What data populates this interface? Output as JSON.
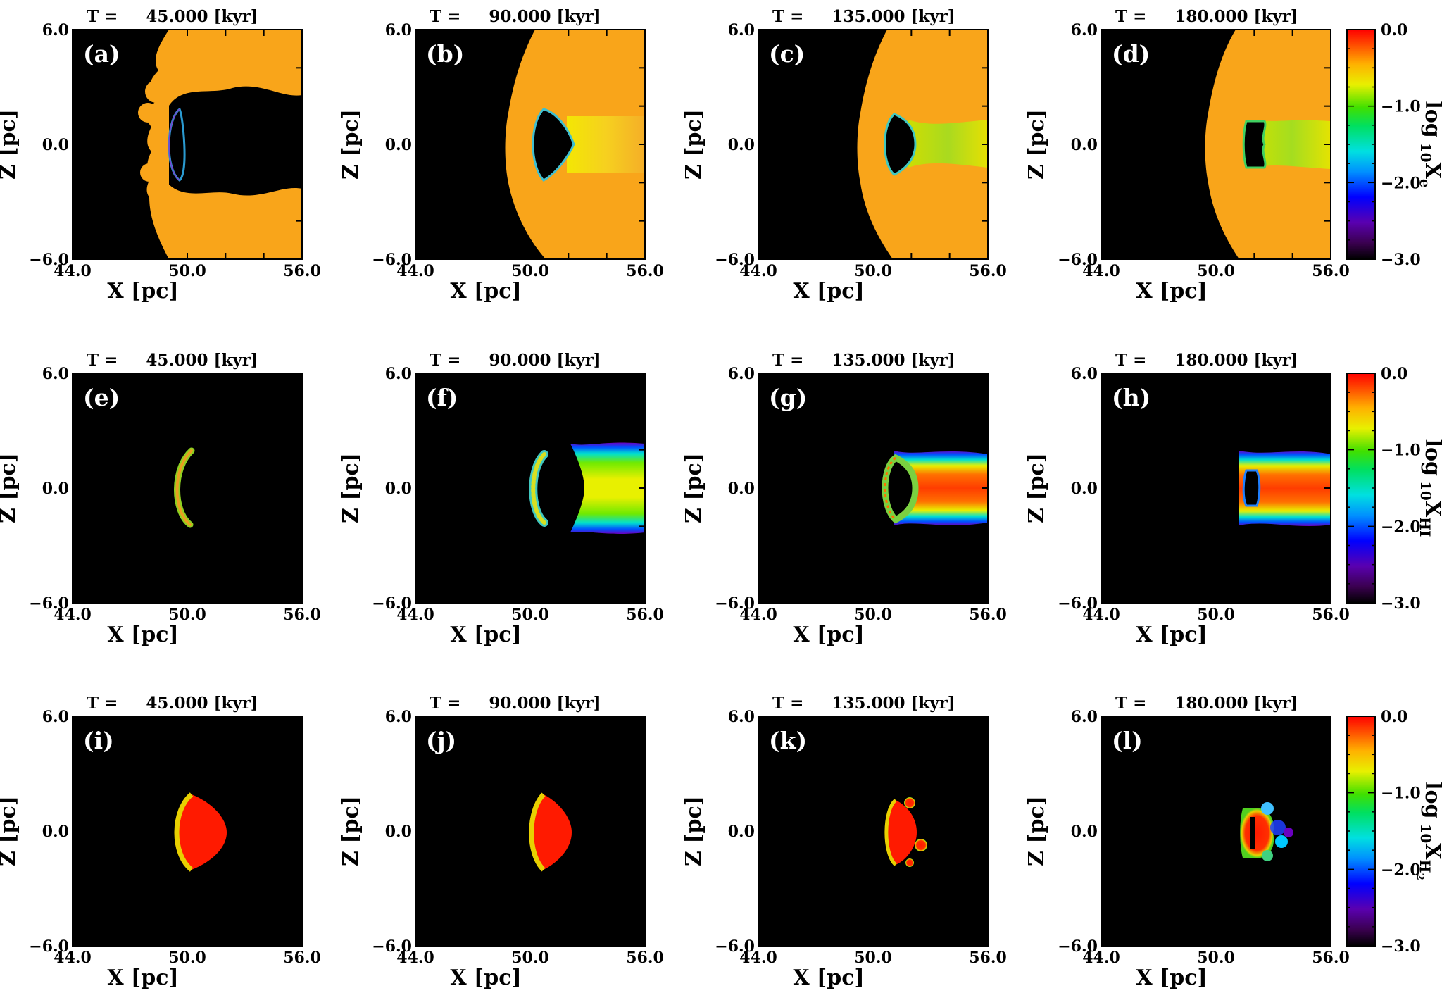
{
  "chart_data": {
    "type": "heatmap",
    "colormap": "rainbow (black - purple - blue - cyan - green - yellow - orange - red)",
    "xlabel": "X [pc]",
    "ylabel": "Z [pc]",
    "xlim": [
      44.0,
      56.0
    ],
    "ylim": [
      -6.0,
      6.0
    ],
    "xticklabels": [
      "44.0",
      "50.0",
      "56.0"
    ],
    "yticklabels": [
      "6.0",
      "0.0",
      "−6.0"
    ],
    "time_prefix": "T =",
    "time_unit": "[kyr]",
    "rows": [
      {
        "quantity": "log₁₀Xₑ",
        "colorbar": {
          "label": "log 10 Xe",
          "ticklabels": [
            "0.0",
            "−1.0",
            "−2.0",
            "−3.0"
          ],
          "range": [
            -3.0,
            0.0
          ]
        },
        "panels": [
          {
            "label": "(a)",
            "time": "45.000",
            "background": "#000000",
            "field": "#f9a51a"
          },
          {
            "label": "(b)",
            "time": "90.000",
            "background": "#000000",
            "field": "#f9a51a"
          },
          {
            "label": "(c)",
            "time": "135.000",
            "background": "#000000",
            "field": "#f9a51a"
          },
          {
            "label": "(d)",
            "time": "180.000",
            "background": "#000000",
            "field": "#f9a51a"
          }
        ]
      },
      {
        "quantity": "log₁₀Xʜɪ",
        "colorbar": {
          "label": "log 10 XHI",
          "ticklabels": [
            "0.0",
            "−1.0",
            "−2.0",
            "−3.0"
          ],
          "range": [
            -3.0,
            0.0
          ]
        },
        "panels": [
          {
            "label": "(e)",
            "time": "45.000",
            "background": "#000000"
          },
          {
            "label": "(f)",
            "time": "90.000",
            "background": "#000000"
          },
          {
            "label": "(g)",
            "time": "135.000",
            "background": "#000000"
          },
          {
            "label": "(h)",
            "time": "180.000",
            "background": "#000000"
          }
        ]
      },
      {
        "quantity": "log₁₀Xʜ₂",
        "colorbar": {
          "label": "log 10 XH2",
          "ticklabels": [
            "0.0",
            "−1.0",
            "−2.0",
            "−3.0"
          ],
          "range": [
            -3.0,
            0.0
          ]
        },
        "panels": [
          {
            "label": "(i)",
            "time": "45.000",
            "background": "#000000"
          },
          {
            "label": "(j)",
            "time": "90.000",
            "background": "#000000"
          },
          {
            "label": "(k)",
            "time": "135.000",
            "background": "#000000"
          },
          {
            "label": "(l)",
            "time": "180.000",
            "background": "#000000"
          }
        ]
      }
    ]
  },
  "colorbar_labels": {
    "row0": {
      "base": "log",
      "sub": "10",
      "var": "X",
      "varsub": "e"
    },
    "row1": {
      "base": "log",
      "sub": "10",
      "var": "X",
      "varsub": "HI"
    },
    "row2": {
      "base": "log",
      "sub": "10",
      "var": "X",
      "varsub": "H",
      "varsubsub": "2"
    }
  }
}
